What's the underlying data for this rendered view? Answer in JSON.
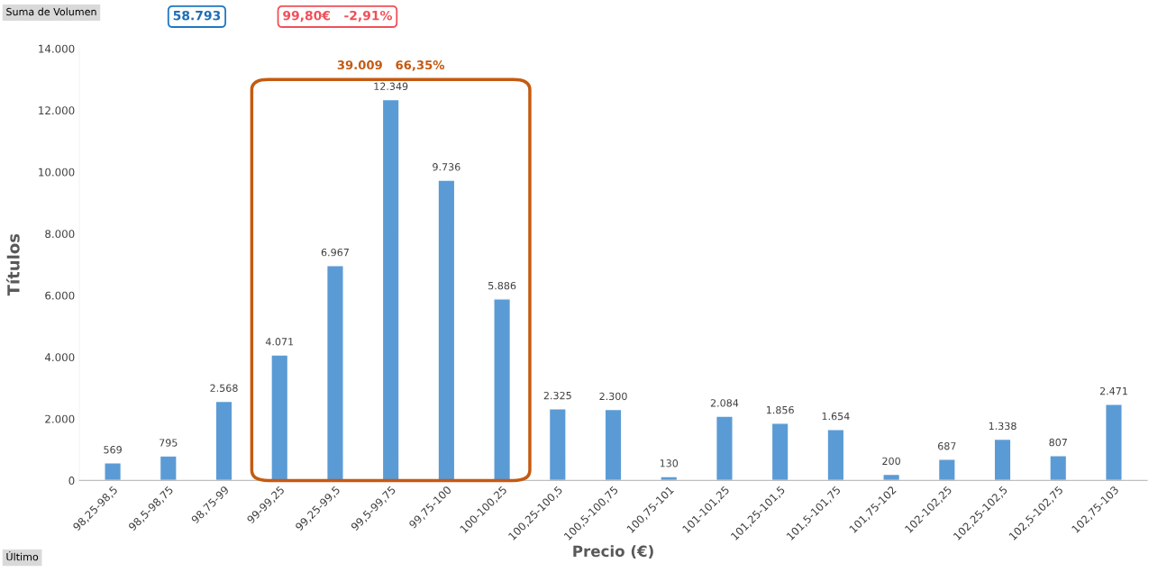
{
  "chart_data": {
    "type": "bar",
    "xlabel": "Precio (€)",
    "ylabel": "Títulos",
    "categories": [
      "98,25-98,5",
      "98,5-98,75",
      "98,75-99",
      "99-99,25",
      "99,25-99,5",
      "99,5-99,75",
      "99,75-100",
      "100-100,25",
      "100,25-100,5",
      "100,5-100,75",
      "100,75-101",
      "101-101,25",
      "101,25-101,5",
      "101,5-101,75",
      "101,75-102",
      "102-102,25",
      "102,25-102,5",
      "102,5-102,75",
      "102,75-103"
    ],
    "values": [
      569,
      795,
      2568,
      4071,
      6967,
      12349,
      9736,
      5886,
      2325,
      2300,
      130,
      2084,
      1856,
      1654,
      200,
      687,
      1338,
      807,
      2471
    ],
    "value_labels": [
      "569",
      "795",
      "2.568",
      "4.071",
      "6.967",
      "12.349",
      "9.736",
      "5.886",
      "2.325",
      "2.300",
      "130",
      "2.084",
      "1.856",
      "1.654",
      "200",
      "687",
      "1.338",
      "807",
      "2.471"
    ],
    "color": "#5b9bd5",
    "ylim": [
      0,
      14000
    ],
    "yticks": [
      0,
      {
        "value": 2000,
        "label": "2.000"
      },
      {
        "value": 4000,
        "label": "4.000"
      },
      {
        "value": 6000,
        "label": "6.000"
      },
      {
        "value": 8000,
        "label": "8.000"
      },
      {
        "value": 10000,
        "label": "10.000"
      },
      {
        "value": 12000,
        "label": "12.000"
      },
      {
        "value": 14000,
        "label": "14.000"
      }
    ],
    "annotations": [
      "Suma de Volumen",
      "58.793",
      "99,80€   -2,91%",
      "Último",
      "39.009   66,35%"
    ],
    "grid": false,
    "legend": false
  }
}
